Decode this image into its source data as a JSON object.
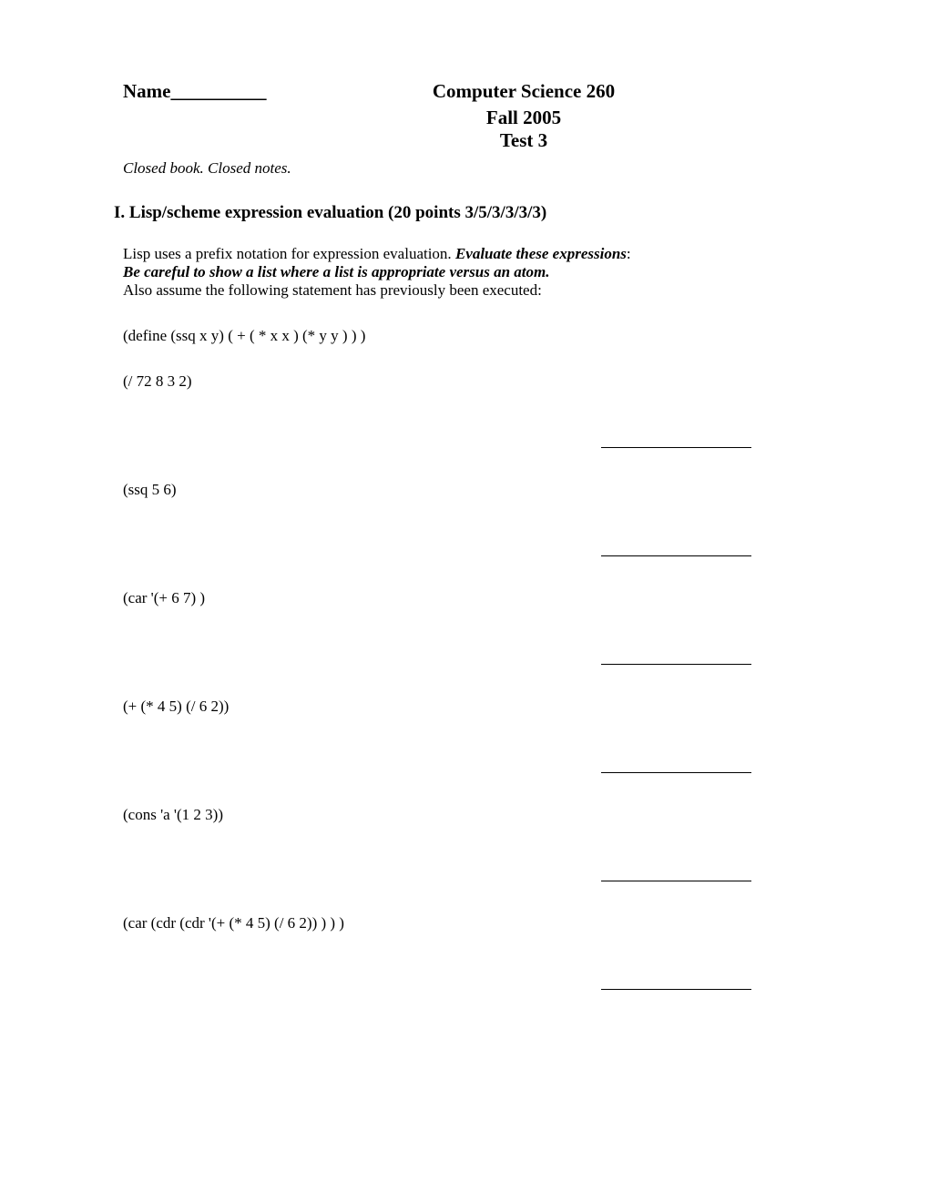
{
  "header": {
    "name_label": "Name__________",
    "course_title": "Computer Science 260",
    "semester": "Fall 2005",
    "test_number": "Test 3"
  },
  "instructions": "Closed book. Closed notes.",
  "section": {
    "heading": "I. Lisp/scheme expression evaluation (20 points 3/5/3/3/3/3)",
    "intro_part1": "Lisp uses a prefix notation for expression evaluation. ",
    "intro_part2": "Evaluate these expressions",
    "intro_part3": ":",
    "intro_part4": "Be careful to show a list where a list is appropriate versus an atom.",
    "intro_part5": "Also assume the following statement has previously been executed:",
    "define_stmt": "(define (ssq x y) ( + ( * x x ) (* y y ) ) )"
  },
  "expressions": {
    "expr1": "(/  72  8  3  2)",
    "expr2": " (ssq  5  6)",
    "expr3": "(car '(+ 6 7) )",
    "expr4": "(+ (*  4 5) (/ 6 2))",
    "expr5": " (cons 'a  '(1 2 3))",
    "expr6": "(car (cdr (cdr '(+ (*  4 5) (/ 6 2)) ) ) )"
  }
}
